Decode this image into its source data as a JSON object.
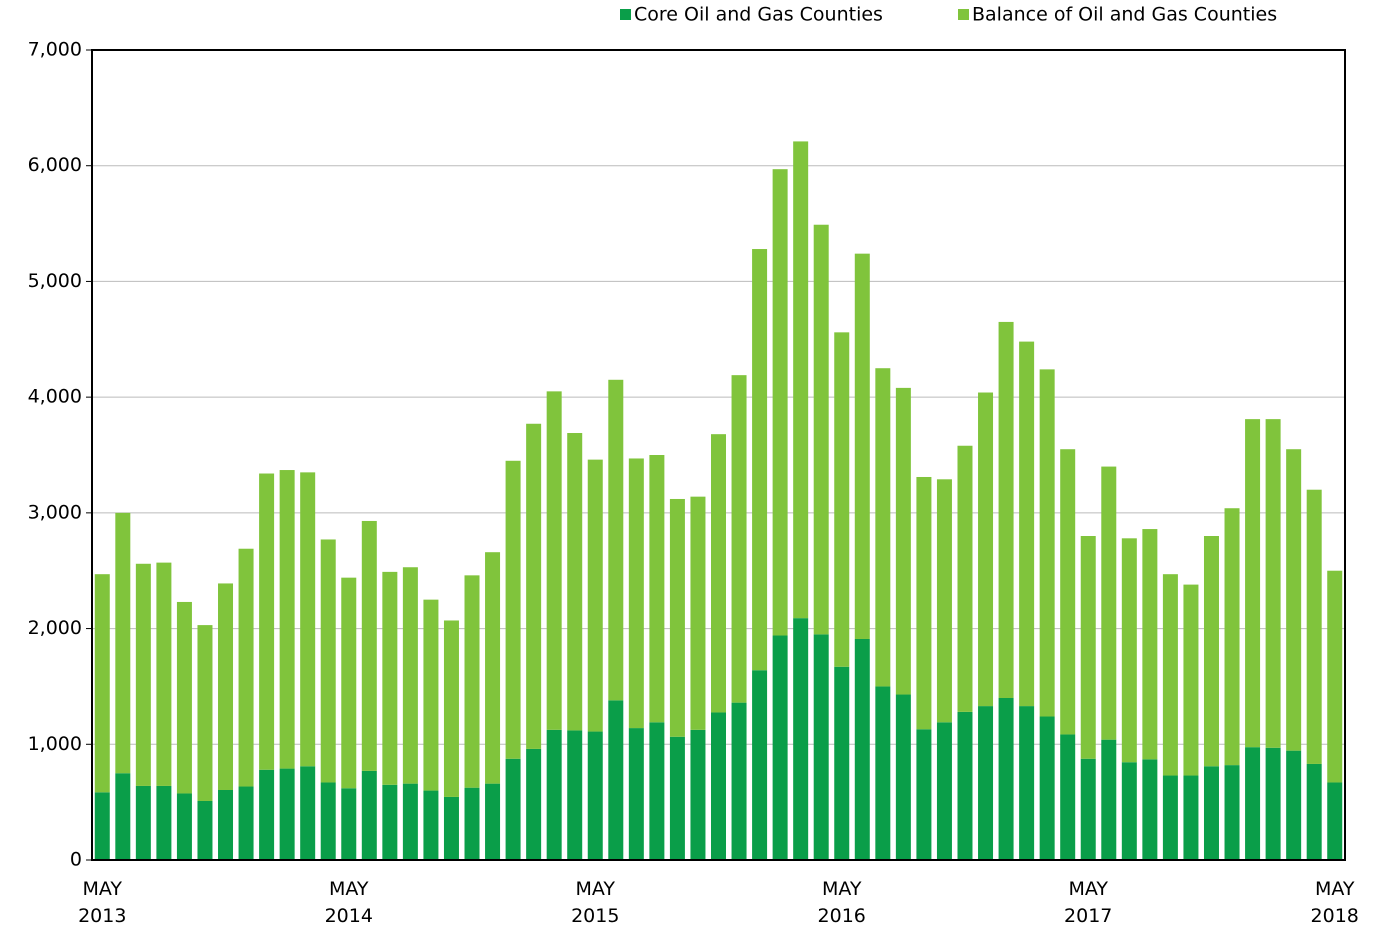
{
  "chart_data": {
    "type": "stacked_bar",
    "categories": [
      "MAY 2013",
      null,
      null,
      null,
      null,
      null,
      null,
      null,
      null,
      null,
      null,
      null,
      "MAY 2014",
      null,
      null,
      null,
      null,
      null,
      null,
      null,
      null,
      null,
      null,
      null,
      "MAY 2015",
      null,
      null,
      null,
      null,
      null,
      null,
      null,
      null,
      null,
      null,
      null,
      "MAY 2016",
      null,
      null,
      null,
      null,
      null,
      null,
      null,
      null,
      null,
      null,
      null,
      "MAY 2017",
      null,
      null,
      null,
      null,
      null,
      null,
      null,
      null,
      null,
      null,
      null,
      "MAY 2018"
    ],
    "series": [
      {
        "name": "Core Oil and Gas Counties",
        "color": "#0a9e49",
        "values": [
          585,
          750,
          640,
          640,
          575,
          510,
          605,
          635,
          780,
          790,
          810,
          670,
          620,
          770,
          650,
          660,
          600,
          545,
          625,
          660,
          875,
          960,
          1125,
          1120,
          1110,
          1380,
          1140,
          1190,
          1065,
          1125,
          1275,
          1360,
          1640,
          1940,
          2090,
          1950,
          1670,
          1910,
          1500,
          1430,
          1130,
          1190,
          1280,
          1330,
          1400,
          1330,
          1240,
          1085,
          875,
          1040,
          845,
          870,
          730,
          730,
          810,
          820,
          975,
          970,
          945,
          830,
          670
        ]
      },
      {
        "name": "Balance of Oil and Gas Counties",
        "color": "#80c43c",
        "values": [
          1885,
          2250,
          1920,
          1930,
          1655,
          1520,
          1785,
          2055,
          2560,
          2580,
          2540,
          2100,
          1820,
          2160,
          1840,
          1870,
          1650,
          1525,
          1835,
          2000,
          2575,
          2810,
          2925,
          2570,
          2350,
          2770,
          2330,
          2310,
          2055,
          2015,
          2405,
          2830,
          3640,
          4030,
          4120,
          3540,
          2890,
          3330,
          2750,
          2650,
          2180,
          2100,
          2300,
          2710,
          3250,
          3150,
          3000,
          2465,
          1925,
          2360,
          1935,
          1990,
          1740,
          1650,
          1990,
          2220,
          2835,
          2840,
          2605,
          2370,
          1830
        ]
      }
    ],
    "ylim": [
      0,
      7000
    ],
    "yticks": [
      0,
      {
        "value": 1000,
        "label": "1,000"
      },
      {
        "value": 2000,
        "label": "2,000"
      },
      {
        "value": 3000,
        "label": "3,000"
      },
      {
        "value": 4000,
        "label": "4,000"
      },
      {
        "value": 5000,
        "label": "5,000"
      },
      {
        "value": 6000,
        "label": "6,000"
      },
      {
        "value": 7000,
        "label": "7,000"
      }
    ],
    "grid": true
  }
}
